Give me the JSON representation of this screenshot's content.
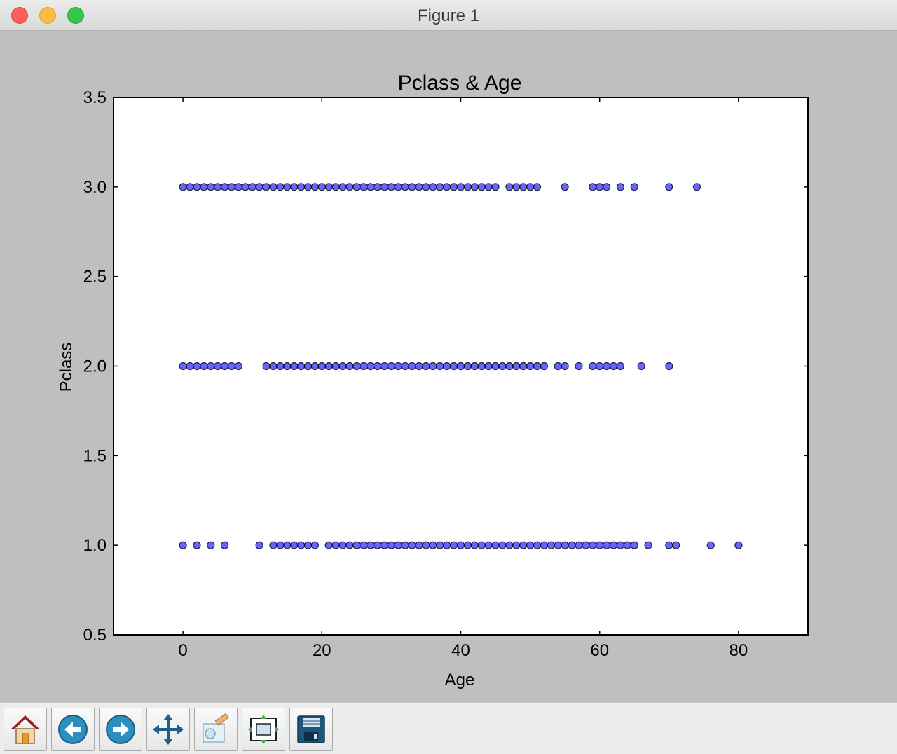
{
  "window": {
    "title": "Figure 1"
  },
  "toolbar": {
    "buttons": [
      {
        "name": "home-button",
        "icon": "home-icon"
      },
      {
        "name": "back-button",
        "icon": "arrow-left-icon"
      },
      {
        "name": "forward-button",
        "icon": "arrow-right-icon"
      },
      {
        "name": "pan-button",
        "icon": "move-arrows-icon"
      },
      {
        "name": "zoom-button",
        "icon": "zoom-rect-icon"
      },
      {
        "name": "configure-subplots-button",
        "icon": "subplots-icon"
      },
      {
        "name": "save-button",
        "icon": "floppy-disk-icon"
      }
    ]
  },
  "chart_data": {
    "type": "scatter",
    "title": "Pclass & Age",
    "xlabel": "Age",
    "ylabel": "Pclass",
    "xlim": [
      -10,
      90
    ],
    "ylim": [
      0.5,
      3.5
    ],
    "xticks": [
      0,
      20,
      40,
      60,
      80
    ],
    "yticks": [
      0.5,
      1.0,
      1.5,
      2.0,
      2.5,
      3.0,
      3.5
    ],
    "xtick_labels": [
      "0",
      "20",
      "40",
      "60",
      "80"
    ],
    "ytick_labels": [
      "0.5",
      "1.0",
      "1.5",
      "2.0",
      "2.5",
      "3.0",
      "3.5"
    ],
    "grid": false,
    "marker_color": "#0000ff",
    "marker_edge": "#000000",
    "series": [
      {
        "y": 1.0,
        "x": [
          0,
          2,
          4,
          6,
          11,
          13,
          14,
          15,
          16,
          17,
          18,
          19,
          21,
          22,
          23,
          24,
          25,
          26,
          27,
          28,
          29,
          30,
          31,
          32,
          33,
          34,
          35,
          36,
          37,
          38,
          39,
          40,
          41,
          42,
          43,
          44,
          45,
          46,
          47,
          48,
          49,
          50,
          51,
          52,
          53,
          54,
          55,
          56,
          57,
          58,
          59,
          60,
          61,
          62,
          63,
          64,
          65,
          67,
          70,
          71,
          76,
          80
        ]
      },
      {
        "y": 2.0,
        "x": [
          0,
          1,
          2,
          3,
          4,
          5,
          6,
          7,
          8,
          12,
          13,
          14,
          15,
          16,
          17,
          18,
          19,
          20,
          21,
          22,
          23,
          24,
          25,
          26,
          27,
          28,
          29,
          30,
          31,
          32,
          33,
          34,
          35,
          36,
          37,
          38,
          39,
          40,
          41,
          42,
          43,
          44,
          45,
          46,
          47,
          48,
          49,
          50,
          51,
          52,
          54,
          55,
          57,
          59,
          60,
          61,
          62,
          63,
          66,
          70
        ]
      },
      {
        "y": 3.0,
        "x": [
          0,
          1,
          2,
          3,
          4,
          5,
          6,
          7,
          8,
          9,
          10,
          11,
          12,
          13,
          14,
          15,
          16,
          17,
          18,
          19,
          20,
          21,
          22,
          23,
          24,
          25,
          26,
          27,
          28,
          29,
          30,
          31,
          32,
          33,
          34,
          35,
          36,
          37,
          38,
          39,
          40,
          41,
          42,
          43,
          44,
          45,
          47,
          48,
          49,
          50,
          51,
          55,
          59,
          60,
          61,
          63,
          65,
          70,
          74
        ]
      }
    ]
  }
}
